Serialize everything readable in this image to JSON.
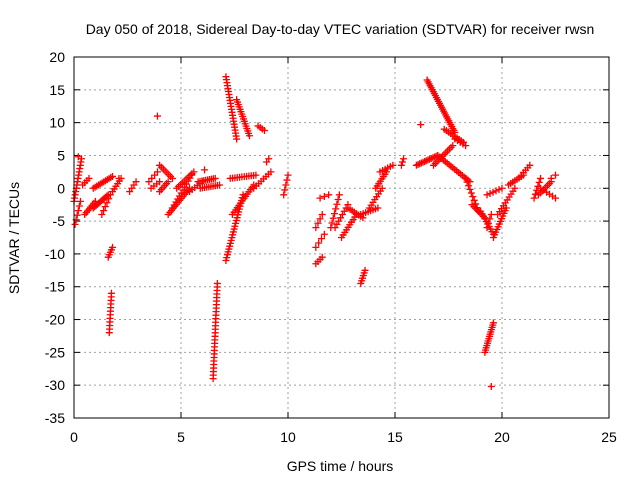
{
  "chart_data": {
    "type": "scatter",
    "title": "Day 050 of 2018, Sidereal Day-to-day VTEC variation (SDTVAR) for receiver rwsn",
    "xlabel": "GPS time / hours",
    "ylabel": "SDTVAR / TECUs",
    "xlim": [
      0,
      25
    ],
    "ylim": [
      -35,
      20
    ],
    "xticks": [
      "0",
      "5",
      "10",
      "15",
      "20",
      "25"
    ],
    "yticks": [
      "20",
      "15",
      "10",
      "5",
      "0",
      "-5",
      "-10",
      "-15",
      "-20",
      "-25",
      "-30",
      "-35"
    ],
    "grid": true,
    "marker": "plus",
    "color": "#ff0000",
    "segments": [
      {
        "x0": 0.0,
        "x1": 0.35,
        "y0": -2.0,
        "y1": 4.5,
        "n": 14
      },
      {
        "x0": 0.05,
        "x1": 0.3,
        "y0": -5.5,
        "y1": -2.0,
        "n": 6
      },
      {
        "x0": 0.4,
        "x1": 0.7,
        "y0": 0.5,
        "y1": 1.5,
        "n": 4
      },
      {
        "x0": 0.5,
        "x1": 1.0,
        "y0": -4.0,
        "y1": -2.0,
        "n": 8
      },
      {
        "x0": 0.9,
        "x1": 1.6,
        "y0": -3.0,
        "y1": -1.0,
        "n": 12
      },
      {
        "x0": 0.9,
        "x1": 1.8,
        "y0": 0.0,
        "y1": 1.8,
        "n": 12
      },
      {
        "x0": 1.3,
        "x1": 1.7,
        "y0": -4.0,
        "y1": -1.0,
        "n": 6
      },
      {
        "x0": 1.6,
        "x1": 1.8,
        "y0": -10.5,
        "y1": -9.0,
        "n": 5
      },
      {
        "x0": 1.65,
        "x1": 1.75,
        "y0": -22.0,
        "y1": -16.0,
        "n": 12
      },
      {
        "x0": 1.8,
        "x1": 2.2,
        "y0": -0.5,
        "y1": 1.5,
        "n": 6
      },
      {
        "x0": 2.6,
        "x1": 2.9,
        "y0": -0.5,
        "y1": 1.0,
        "n": 4
      },
      {
        "x0": 3.5,
        "x1": 3.9,
        "y0": 1.0,
        "y1": 2.5,
        "n": 4
      },
      {
        "x0": 3.6,
        "x1": 4.0,
        "y0": 0.0,
        "y1": 1.0,
        "n": 4
      },
      {
        "x0": 4.0,
        "x1": 4.6,
        "y0": 3.5,
        "y1": 1.5,
        "n": 8
      },
      {
        "x0": 4.0,
        "x1": 4.4,
        "y0": -0.5,
        "y1": 1.0,
        "n": 6
      },
      {
        "x0": 4.4,
        "x1": 5.4,
        "y0": -4.0,
        "y1": 0.0,
        "n": 14
      },
      {
        "x0": 4.6,
        "x1": 5.5,
        "y0": -3.0,
        "y1": 2.0,
        "n": 12
      },
      {
        "x0": 4.8,
        "x1": 5.6,
        "y0": 0.0,
        "y1": 2.5,
        "n": 10
      },
      {
        "x0": 5.4,
        "x1": 6.0,
        "y0": -0.5,
        "y1": 1.0,
        "n": 6
      },
      {
        "x0": 5.8,
        "x1": 6.6,
        "y0": 1.0,
        "y1": 1.5,
        "n": 10
      },
      {
        "x0": 5.9,
        "x1": 6.8,
        "y0": 0.0,
        "y1": 0.5,
        "n": 10
      },
      {
        "x0": 6.5,
        "x1": 6.7,
        "y0": -29.0,
        "y1": -14.5,
        "n": 28
      },
      {
        "x0": 7.1,
        "x1": 7.6,
        "y0": 17.0,
        "y1": 7.5,
        "n": 22
      },
      {
        "x0": 7.6,
        "x1": 8.2,
        "y0": 13.5,
        "y1": 8.0,
        "n": 16
      },
      {
        "x0": 8.6,
        "x1": 8.9,
        "y0": 9.5,
        "y1": 8.8,
        "n": 4
      },
      {
        "x0": 7.1,
        "x1": 7.9,
        "y0": -11.0,
        "y1": -1.0,
        "n": 24
      },
      {
        "x0": 7.4,
        "x1": 8.4,
        "y0": -4.0,
        "y1": 0.5,
        "n": 14
      },
      {
        "x0": 7.3,
        "x1": 8.5,
        "y0": 1.5,
        "y1": 2.0,
        "n": 12
      },
      {
        "x0": 8.4,
        "x1": 9.2,
        "y0": 0.0,
        "y1": 2.5,
        "n": 8
      },
      {
        "x0": 9.0,
        "x1": 9.1,
        "y0": 4.0,
        "y1": 4.5,
        "n": 2
      },
      {
        "x0": 9.8,
        "x1": 10.0,
        "y0": -1.0,
        "y1": 2.0,
        "n": 5
      },
      {
        "x0": 11.3,
        "x1": 11.6,
        "y0": -11.5,
        "y1": -10.5,
        "n": 4
      },
      {
        "x0": 11.3,
        "x1": 11.7,
        "y0": -9.0,
        "y1": -7.0,
        "n": 4
      },
      {
        "x0": 11.3,
        "x1": 11.6,
        "y0": -6.0,
        "y1": -4.0,
        "n": 4
      },
      {
        "x0": 11.5,
        "x1": 11.9,
        "y0": -1.5,
        "y1": -1.0,
        "n": 3
      },
      {
        "x0": 12.0,
        "x1": 12.4,
        "y0": -6.0,
        "y1": -1.0,
        "n": 8
      },
      {
        "x0": 12.2,
        "x1": 12.8,
        "y0": -6.0,
        "y1": -2.5,
        "n": 8
      },
      {
        "x0": 12.5,
        "x1": 13.2,
        "y0": -7.5,
        "y1": -4.0,
        "n": 10
      },
      {
        "x0": 12.8,
        "x1": 13.5,
        "y0": -3.0,
        "y1": -4.5,
        "n": 8
      },
      {
        "x0": 13.4,
        "x1": 13.6,
        "y0": -14.5,
        "y1": -12.5,
        "n": 6
      },
      {
        "x0": 13.4,
        "x1": 14.2,
        "y0": -4.0,
        "y1": -3.0,
        "n": 8
      },
      {
        "x0": 13.8,
        "x1": 14.4,
        "y0": -3.0,
        "y1": 0.0,
        "n": 8
      },
      {
        "x0": 14.1,
        "x1": 14.6,
        "y0": 0.0,
        "y1": 2.5,
        "n": 8
      },
      {
        "x0": 14.3,
        "x1": 14.9,
        "y0": 2.5,
        "y1": 3.5,
        "n": 6
      },
      {
        "x0": 15.3,
        "x1": 15.4,
        "y0": 3.5,
        "y1": 4.5,
        "n": 3
      },
      {
        "x0": 16.0,
        "x1": 17.0,
        "y0": 3.5,
        "y1": 5.0,
        "n": 14
      },
      {
        "x0": 16.5,
        "x1": 17.8,
        "y0": 16.5,
        "y1": 8.5,
        "n": 28
      },
      {
        "x0": 17.3,
        "x1": 18.2,
        "y0": 9.0,
        "y1": 7.0,
        "n": 10
      },
      {
        "x0": 17.8,
        "x1": 18.3,
        "y0": 7.5,
        "y1": 6.5,
        "n": 5
      },
      {
        "x0": 16.8,
        "x1": 17.7,
        "y0": 3.5,
        "y1": 6.5,
        "n": 12
      },
      {
        "x0": 17.0,
        "x1": 18.5,
        "y0": 5.0,
        "y1": 1.0,
        "n": 18
      },
      {
        "x0": 18.3,
        "x1": 18.9,
        "y0": 1.5,
        "y1": -3.5,
        "n": 10
      },
      {
        "x0": 18.6,
        "x1": 19.2,
        "y0": -2.5,
        "y1": -4.5,
        "n": 8
      },
      {
        "x0": 19.0,
        "x1": 19.6,
        "y0": -3.5,
        "y1": -7.0,
        "n": 10
      },
      {
        "x0": 19.2,
        "x1": 19.6,
        "y0": -25.0,
        "y1": -20.5,
        "n": 14
      },
      {
        "x0": 19.3,
        "x1": 19.5,
        "y0": -6.0,
        "y1": -4.0,
        "n": 4
      },
      {
        "x0": 19.6,
        "x1": 20.2,
        "y0": -7.5,
        "y1": -3.0,
        "n": 12
      },
      {
        "x0": 19.8,
        "x1": 20.6,
        "y0": -4.0,
        "y1": 0.0,
        "n": 10
      },
      {
        "x0": 20.3,
        "x1": 21.0,
        "y0": 0.5,
        "y1": 2.0,
        "n": 8
      },
      {
        "x0": 20.9,
        "x1": 21.3,
        "y0": 2.0,
        "y1": 3.5,
        "n": 5
      },
      {
        "x0": 19.3,
        "x1": 20.0,
        "y0": -1.0,
        "y1": 0.0,
        "n": 6
      },
      {
        "x0": 21.5,
        "x1": 21.8,
        "y0": -1.5,
        "y1": 1.5,
        "n": 6
      },
      {
        "x0": 21.7,
        "x1": 22.3,
        "y0": -1.0,
        "y1": 1.0,
        "n": 8
      },
      {
        "x0": 21.8,
        "x1": 22.5,
        "y0": 0.0,
        "y1": -1.5,
        "n": 6
      },
      {
        "x0": 22.3,
        "x1": 22.5,
        "y0": 1.5,
        "y1": 2.0,
        "n": 2
      }
    ],
    "points": [
      [
        3.9,
        11.0
      ],
      [
        16.2,
        9.7
      ],
      [
        19.5,
        -30.2
      ],
      [
        0.2,
        4.8
      ],
      [
        2.1,
        1.5
      ],
      [
        6.1,
        2.8
      ]
    ]
  }
}
